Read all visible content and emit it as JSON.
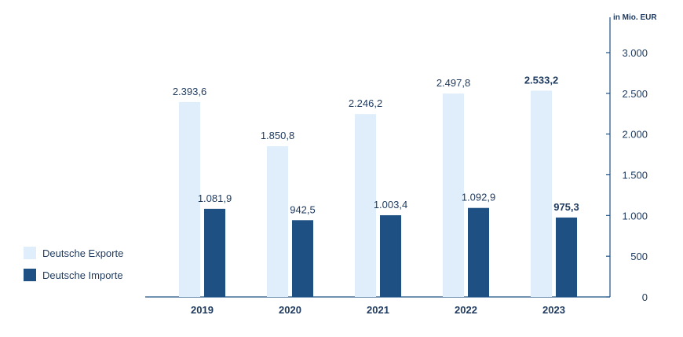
{
  "chart_data": {
    "type": "bar",
    "categories": [
      "2019",
      "2020",
      "2021",
      "2022",
      "2023"
    ],
    "series": [
      {
        "name": "Deutsche Exporte",
        "color": "#e0eefb",
        "values": [
          2393.6,
          1850.8,
          2246.2,
          2497.8,
          2533.2
        ],
        "labels": [
          "2.393,6",
          "1.850,8",
          "2.246,2",
          "2.497,8",
          "2.533,2"
        ]
      },
      {
        "name": "Deutsche Importe",
        "color": "#1f5083",
        "values": [
          1081.9,
          942.5,
          1003.4,
          1092.9,
          975.3
        ],
        "labels": [
          "1.081,9",
          "942,5",
          "1.003,4",
          "1.092,9",
          "975,3"
        ]
      }
    ],
    "unit_label": "in Mio. EUR",
    "yticks": [
      0,
      500,
      1000,
      1500,
      2000,
      2500,
      3000
    ],
    "ytick_labels": [
      "0",
      "500",
      "1.000",
      "1.500",
      "2.000",
      "2.500",
      "3.000"
    ],
    "ylim": [
      0,
      3000
    ],
    "y_axis_side": "right",
    "legend_position": "bottom-left",
    "bold_category": "2023"
  }
}
